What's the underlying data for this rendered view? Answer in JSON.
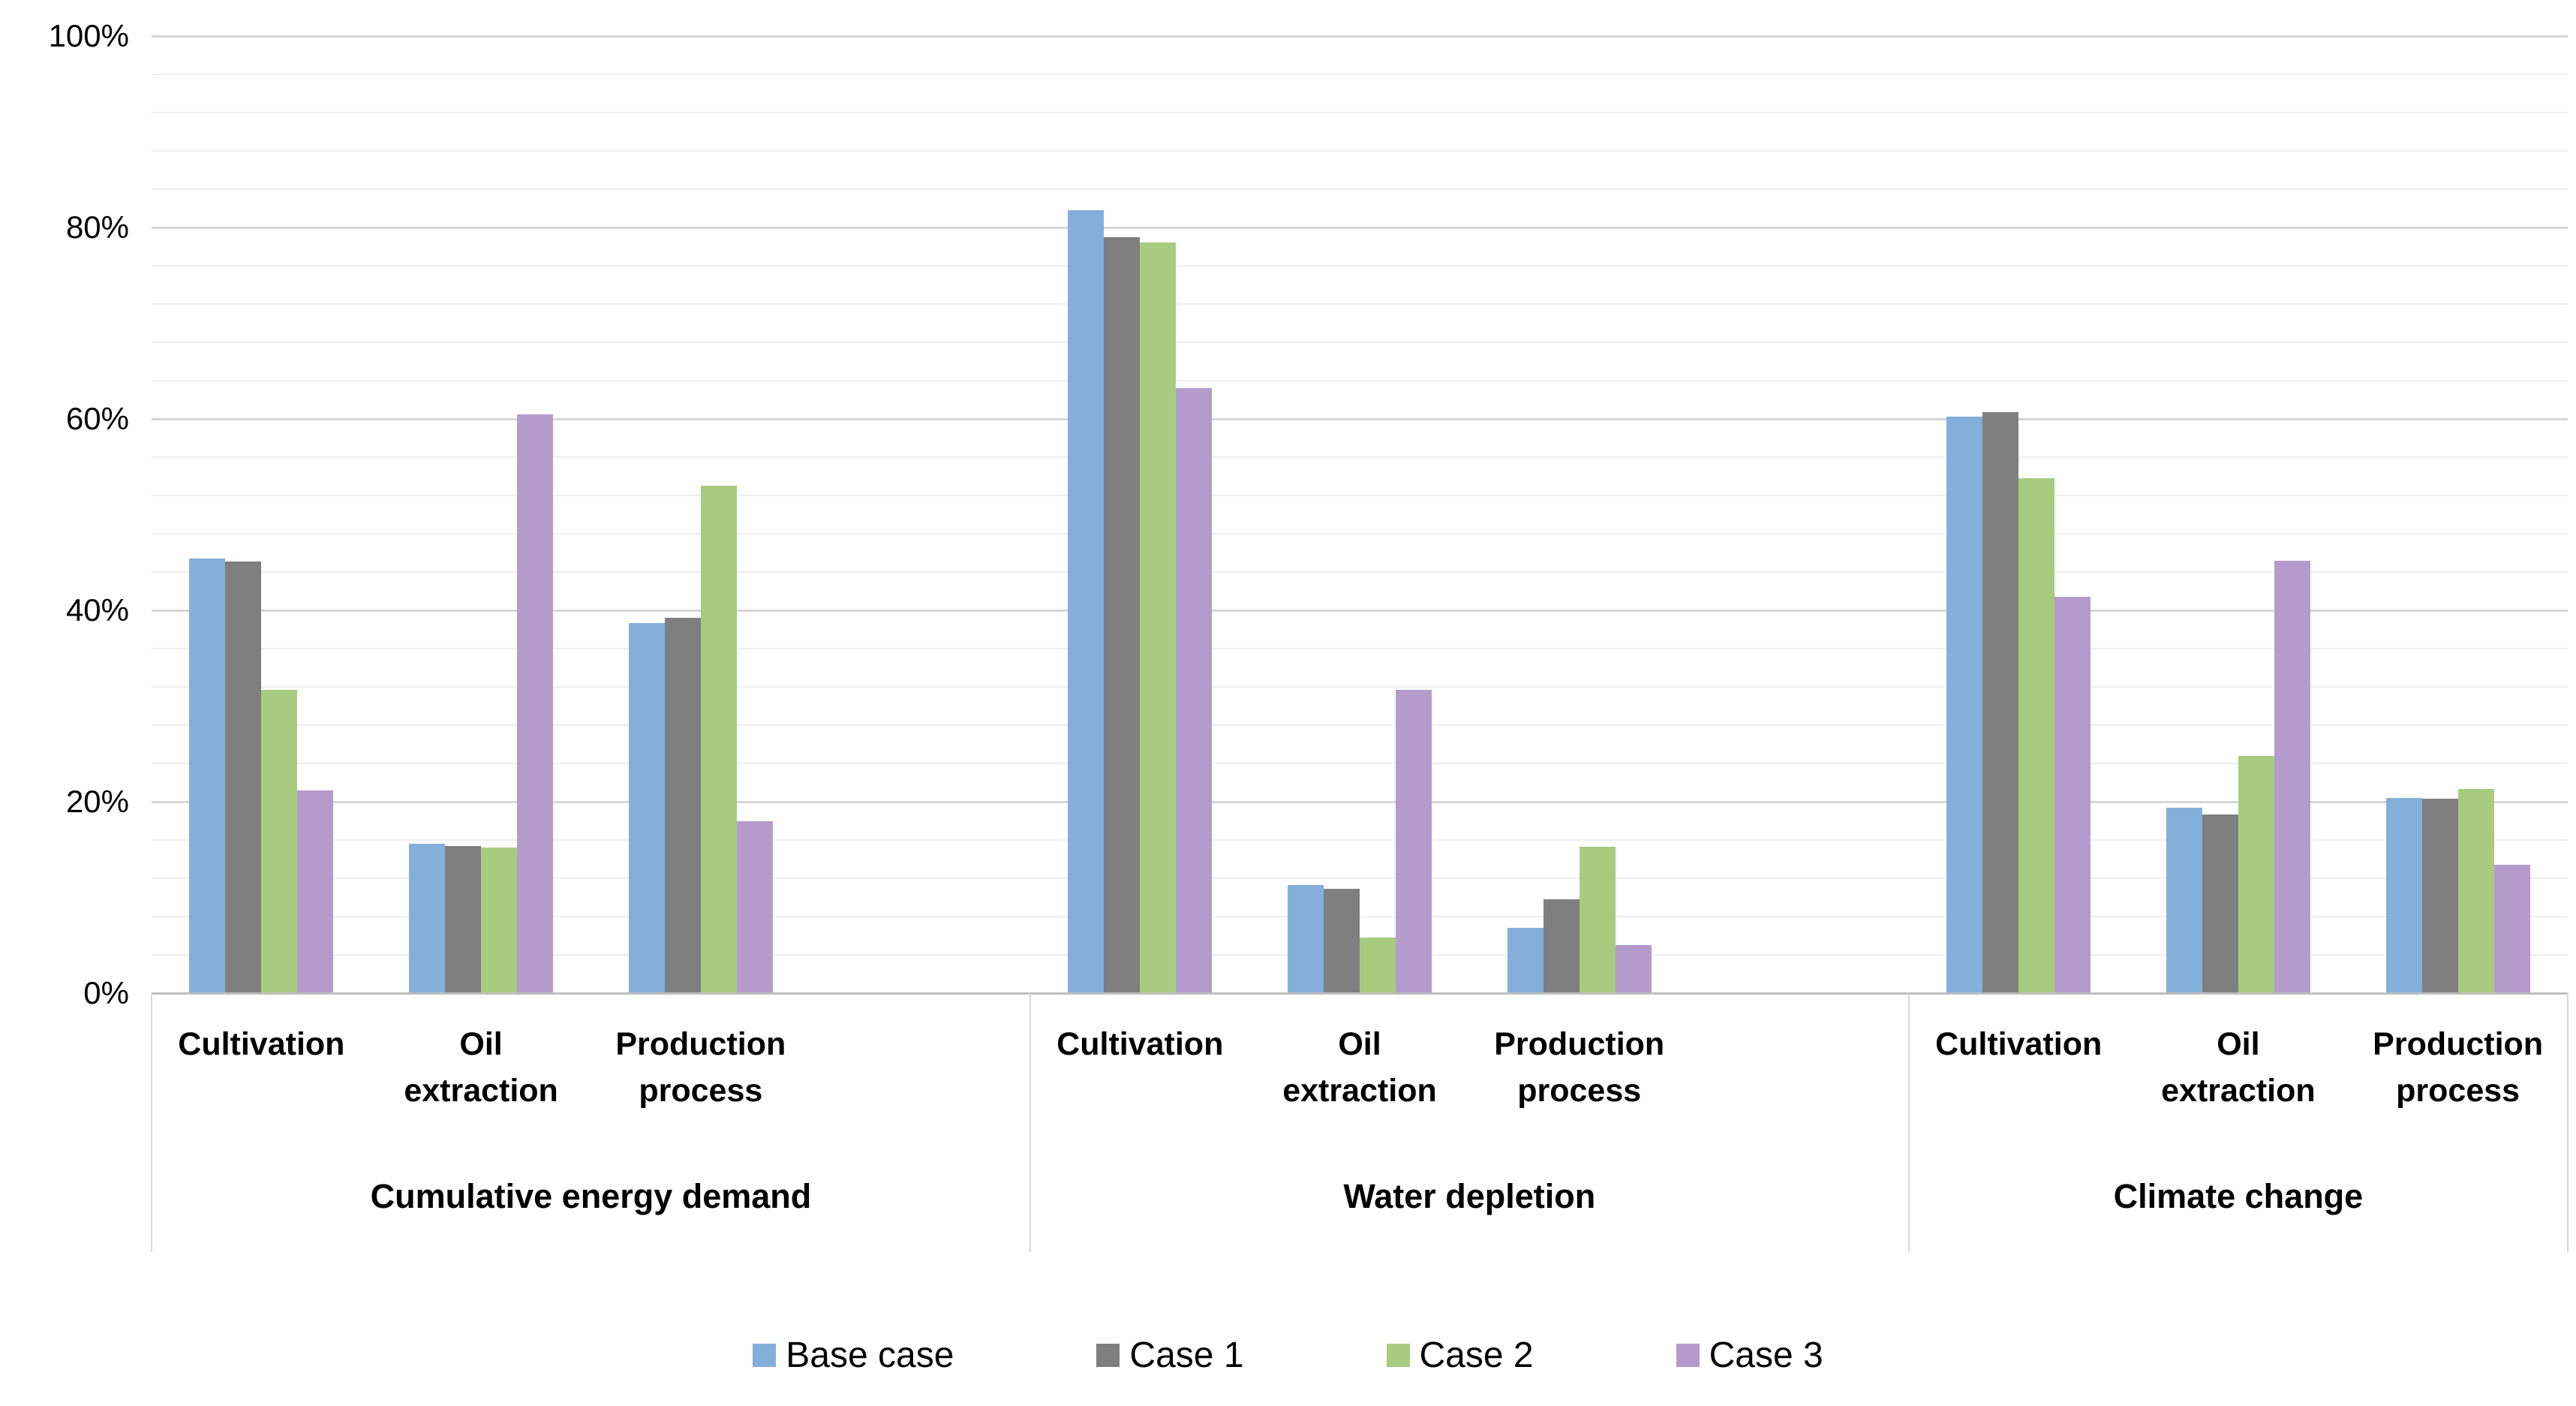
{
  "chart_data": {
    "type": "bar",
    "title": "",
    "xlabel": "",
    "ylabel": "",
    "ylim": [
      0,
      100
    ],
    "y_tick_values": [
      0,
      20,
      40,
      60,
      80,
      100
    ],
    "y_tick_labels": [
      "0%",
      "20%",
      "40%",
      "60%",
      "80%",
      "100%"
    ],
    "minor_grid_step_pct": 4,
    "major_grid_step_pct": 20,
    "grid": "on",
    "legend_position": "bottom",
    "series_names": [
      "Base case",
      "Case 1",
      "Case 2",
      "Case 3"
    ],
    "series_colors": [
      "#85AFDB",
      "#7F7F7F",
      "#A7CC80",
      "#B59BCB"
    ],
    "groups": [
      {
        "label": "Cumulative energy demand",
        "categories": [
          {
            "label_lines": [
              "Cultivation"
            ],
            "values": [
              45.4,
              45.1,
              31.7,
              21.2
            ]
          },
          {
            "label_lines": [
              "Oil",
              "extraction"
            ],
            "values": [
              15.6,
              15.4,
              15.2,
              60.5
            ]
          },
          {
            "label_lines": [
              "Production",
              "process"
            ],
            "values": [
              38.7,
              39.2,
              53.0,
              18.0
            ]
          }
        ]
      },
      {
        "label": "Water depletion",
        "categories": [
          {
            "label_lines": [
              "Cultivation"
            ],
            "values": [
              81.8,
              79.0,
              78.4,
              63.2
            ]
          },
          {
            "label_lines": [
              "Oil",
              "extraction"
            ],
            "values": [
              11.3,
              10.9,
              5.8,
              31.7
            ]
          },
          {
            "label_lines": [
              "Production",
              "process"
            ],
            "values": [
              6.8,
              9.8,
              15.3,
              5.0
            ]
          }
        ]
      },
      {
        "label": "Climate change",
        "categories": [
          {
            "label_lines": [
              "Cultivation"
            ],
            "values": [
              60.2,
              60.7,
              53.8,
              41.4
            ]
          },
          {
            "label_lines": [
              "Oil",
              "extraction"
            ],
            "values": [
              19.4,
              18.7,
              24.8,
              45.2
            ]
          },
          {
            "label_lines": [
              "Production",
              "process"
            ],
            "values": [
              20.4,
              20.3,
              21.3,
              13.4
            ]
          }
        ]
      }
    ],
    "legend": [
      {
        "label": "Base case",
        "color": "#85AFDB"
      },
      {
        "label": "Case 1",
        "color": "#7F7F7F"
      },
      {
        "label": "Case 2",
        "color": "#A7CC80"
      },
      {
        "label": "Case 3",
        "color": "#B59BCB"
      }
    ]
  }
}
